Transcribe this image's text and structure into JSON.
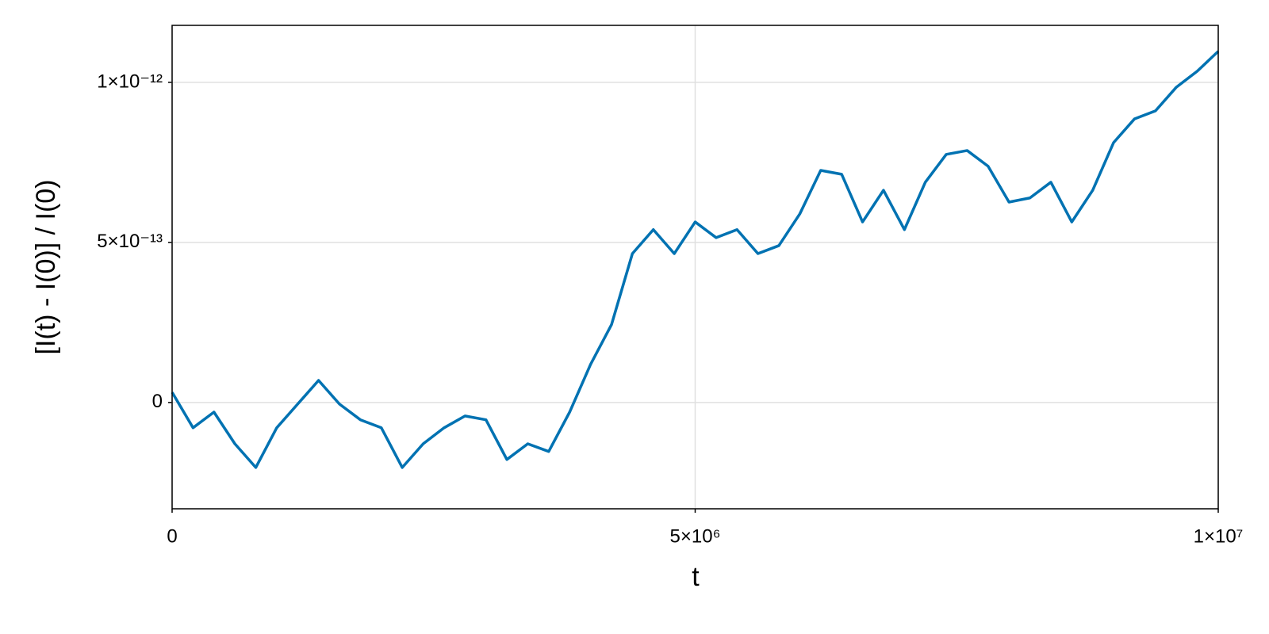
{
  "chart_data": {
    "type": "line",
    "xlabel": "t",
    "ylabel": "[I(t) - I(0)] / I(0)",
    "x": [
      0,
      200000,
      400000,
      600000,
      800000,
      1000000,
      1200000,
      1400000,
      1600000,
      1800000,
      2000000,
      2200000,
      2400000,
      2600000,
      2800000,
      3000000,
      3200000,
      3400000,
      3600000,
      3800000,
      4000000,
      4200000,
      4400000,
      4600000,
      4800000,
      5000000,
      5200000,
      5400000,
      5600000,
      5800000,
      6000000,
      6200000,
      6400000,
      6600000,
      6800000,
      7000000,
      7200000,
      7400000,
      7600000,
      7800000,
      8000000,
      8200000,
      8400000,
      8600000,
      8800000,
      9000000,
      9200000,
      9400000,
      9600000,
      9800000,
      10000000
    ],
    "series": [
      {
        "color": "#0072b2",
        "values": [
          3.2e-14,
          -7.9e-14,
          -3e-14,
          -1.29e-13,
          -2.03e-13,
          -7.9e-14,
          -5e-15,
          6.9e-14,
          -5e-15,
          -5.4e-14,
          -7.9e-14,
          -2.03e-13,
          -1.29e-13,
          -7.9e-14,
          -4.2e-14,
          -5.4e-14,
          -1.78e-13,
          -1.29e-13,
          -1.53e-13,
          -3e-14,
          1.19e-13,
          2.43e-13,
          4.65e-13,
          5.4e-13,
          4.65e-13,
          5.64e-13,
          5.15e-13,
          5.4e-13,
          4.65e-13,
          4.9e-13,
          5.89e-13,
          7.25e-13,
          7.13e-13,
          5.64e-13,
          6.63e-13,
          5.4e-13,
          6.88e-13,
          7.75e-13,
          7.87e-13,
          7.38e-13,
          6.26e-13,
          6.39e-13,
          6.88e-13,
          5.64e-13,
          6.63e-13,
          8.12e-13,
          8.86e-13,
          9.11e-13,
          9.85e-13,
          1.035e-12,
          1.097e-12
        ]
      }
    ],
    "xlim": [
      0,
      10000000
    ],
    "ylim": [
      -3.32e-13,
      1.178e-12
    ],
    "xticks": [
      0,
      {
        "value": 5000000,
        "label": "5×10⁶"
      },
      {
        "value": 10000000,
        "label": "1×10⁷"
      }
    ],
    "yticks": [
      0,
      {
        "value": 5e-13,
        "label": "5×10⁻¹³"
      },
      {
        "value": 1e-12,
        "label": "1×10⁻¹²"
      }
    ],
    "grid": true
  }
}
